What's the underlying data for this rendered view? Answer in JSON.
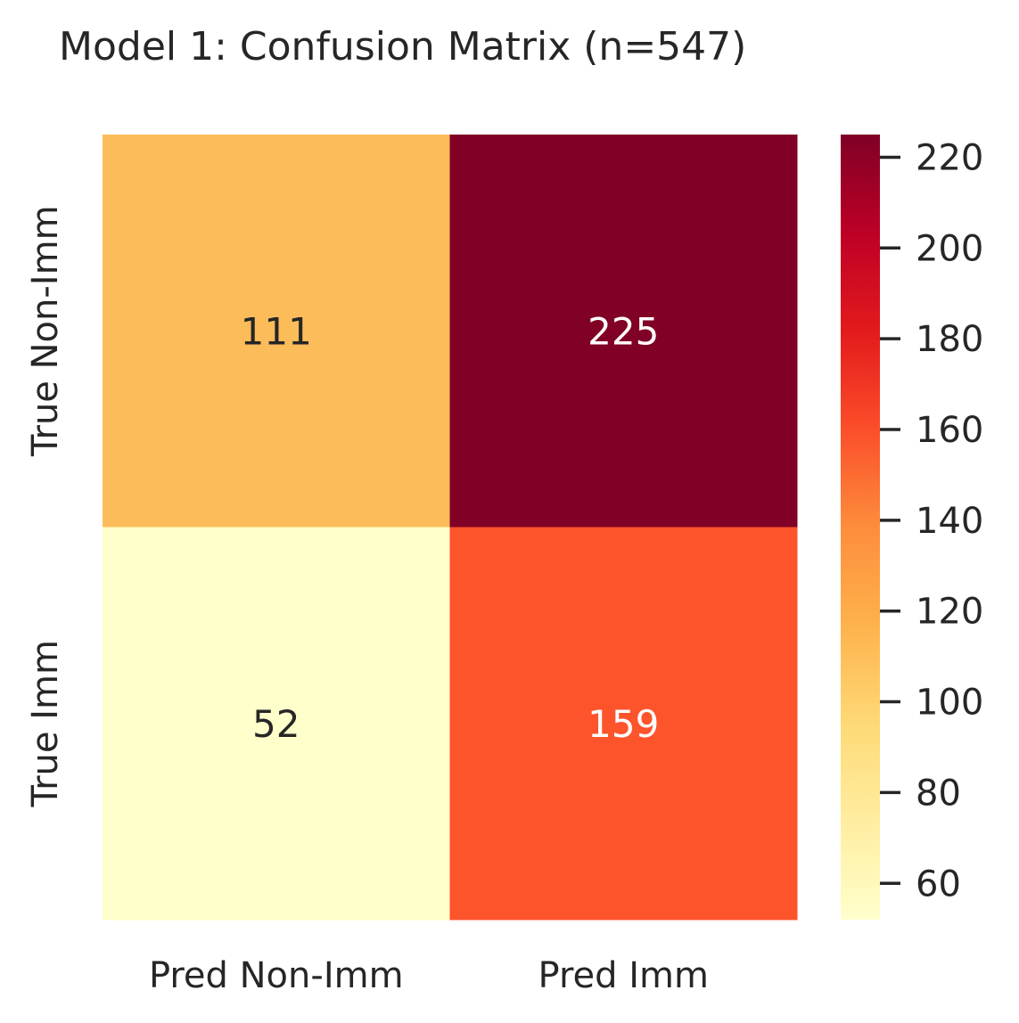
{
  "chart_data": {
    "type": "heatmap",
    "title": "Model 1: Confusion Matrix (n=547)",
    "xlabel": "",
    "ylabel": "",
    "x_categories": [
      "Pred Non-Imm",
      "Pred Imm"
    ],
    "y_categories": [
      "True Non-Imm",
      "True Imm"
    ],
    "values": [
      [
        111,
        225
      ],
      [
        52,
        159
      ]
    ],
    "cell_colors": [
      [
        "#fdbc5a",
        "#800026"
      ],
      [
        "#ffffcc",
        "#fd542b"
      ]
    ],
    "cell_text_colors": [
      [
        "#262626",
        "#ffffff"
      ],
      [
        "#262626",
        "#ffffff"
      ]
    ],
    "colorbar": {
      "colormap": "YlOrRd",
      "range": [
        52,
        225
      ],
      "ticks": [
        60,
        80,
        100,
        120,
        140,
        160,
        180,
        200,
        220
      ]
    },
    "grid": false
  }
}
